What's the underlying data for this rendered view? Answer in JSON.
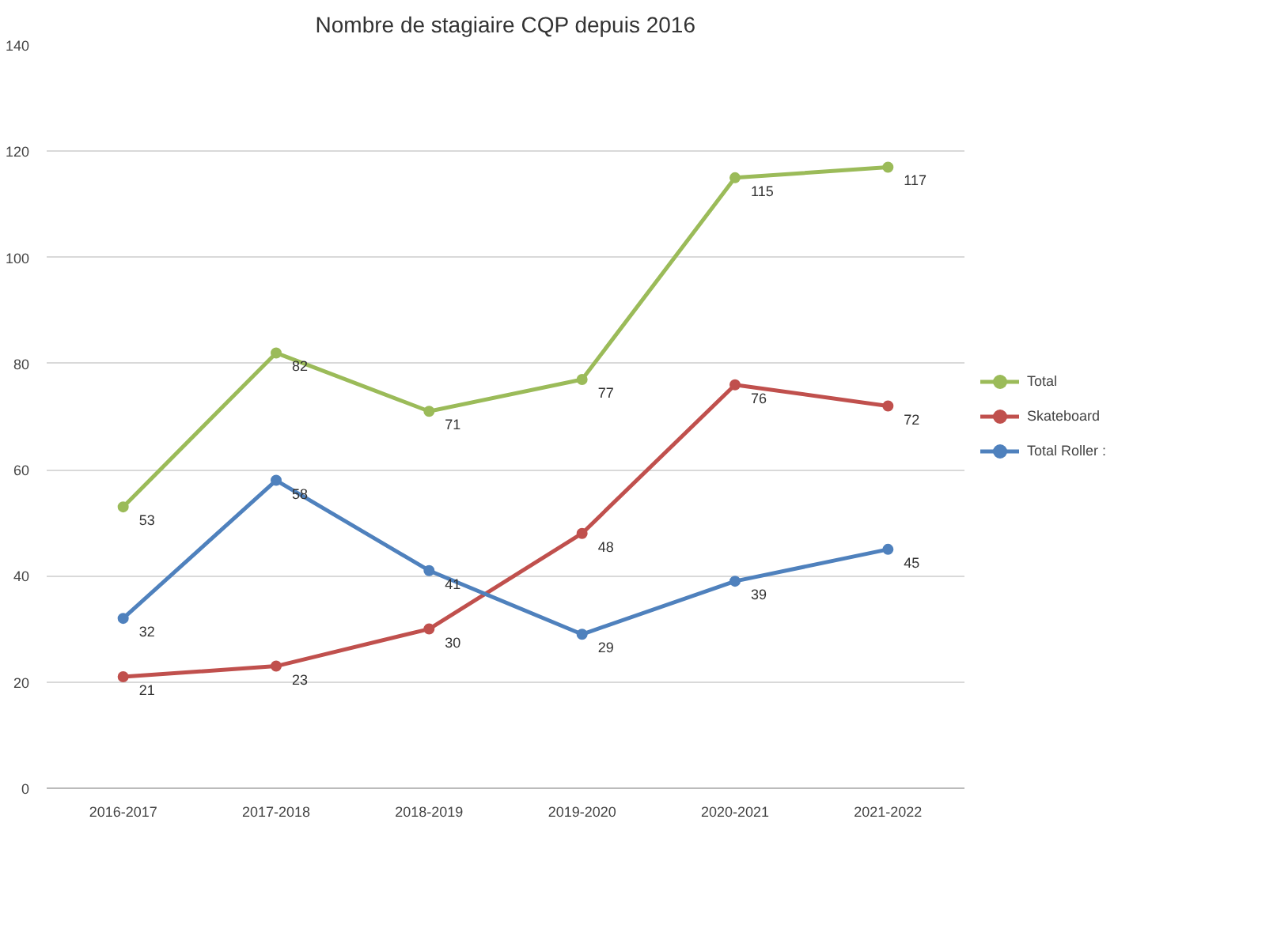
{
  "chart_data": {
    "type": "line",
    "title": "Nombre de stagiaire CQP depuis 2016",
    "categories": [
      "2016-2017",
      "2017-2018",
      "2018-2019",
      "2019-2020",
      "2020-2021",
      "2021-2022"
    ],
    "series": [
      {
        "name": "Total",
        "color": "#9bbb59",
        "values": [
          53,
          82,
          71,
          77,
          115,
          117
        ]
      },
      {
        "name": "Skateboard",
        "color": "#c0504d",
        "values": [
          21,
          23,
          30,
          48,
          76,
          72
        ]
      },
      {
        "name": "Total Roller :",
        "color": "#4f81bd",
        "values": [
          32,
          58,
          41,
          29,
          39,
          45
        ]
      }
    ],
    "ylim": [
      0,
      140
    ],
    "yticks": [
      0,
      20,
      40,
      60,
      80,
      100,
      120,
      140
    ],
    "grid": "y",
    "legend": "right",
    "marker": "circle",
    "data_labels": true
  }
}
